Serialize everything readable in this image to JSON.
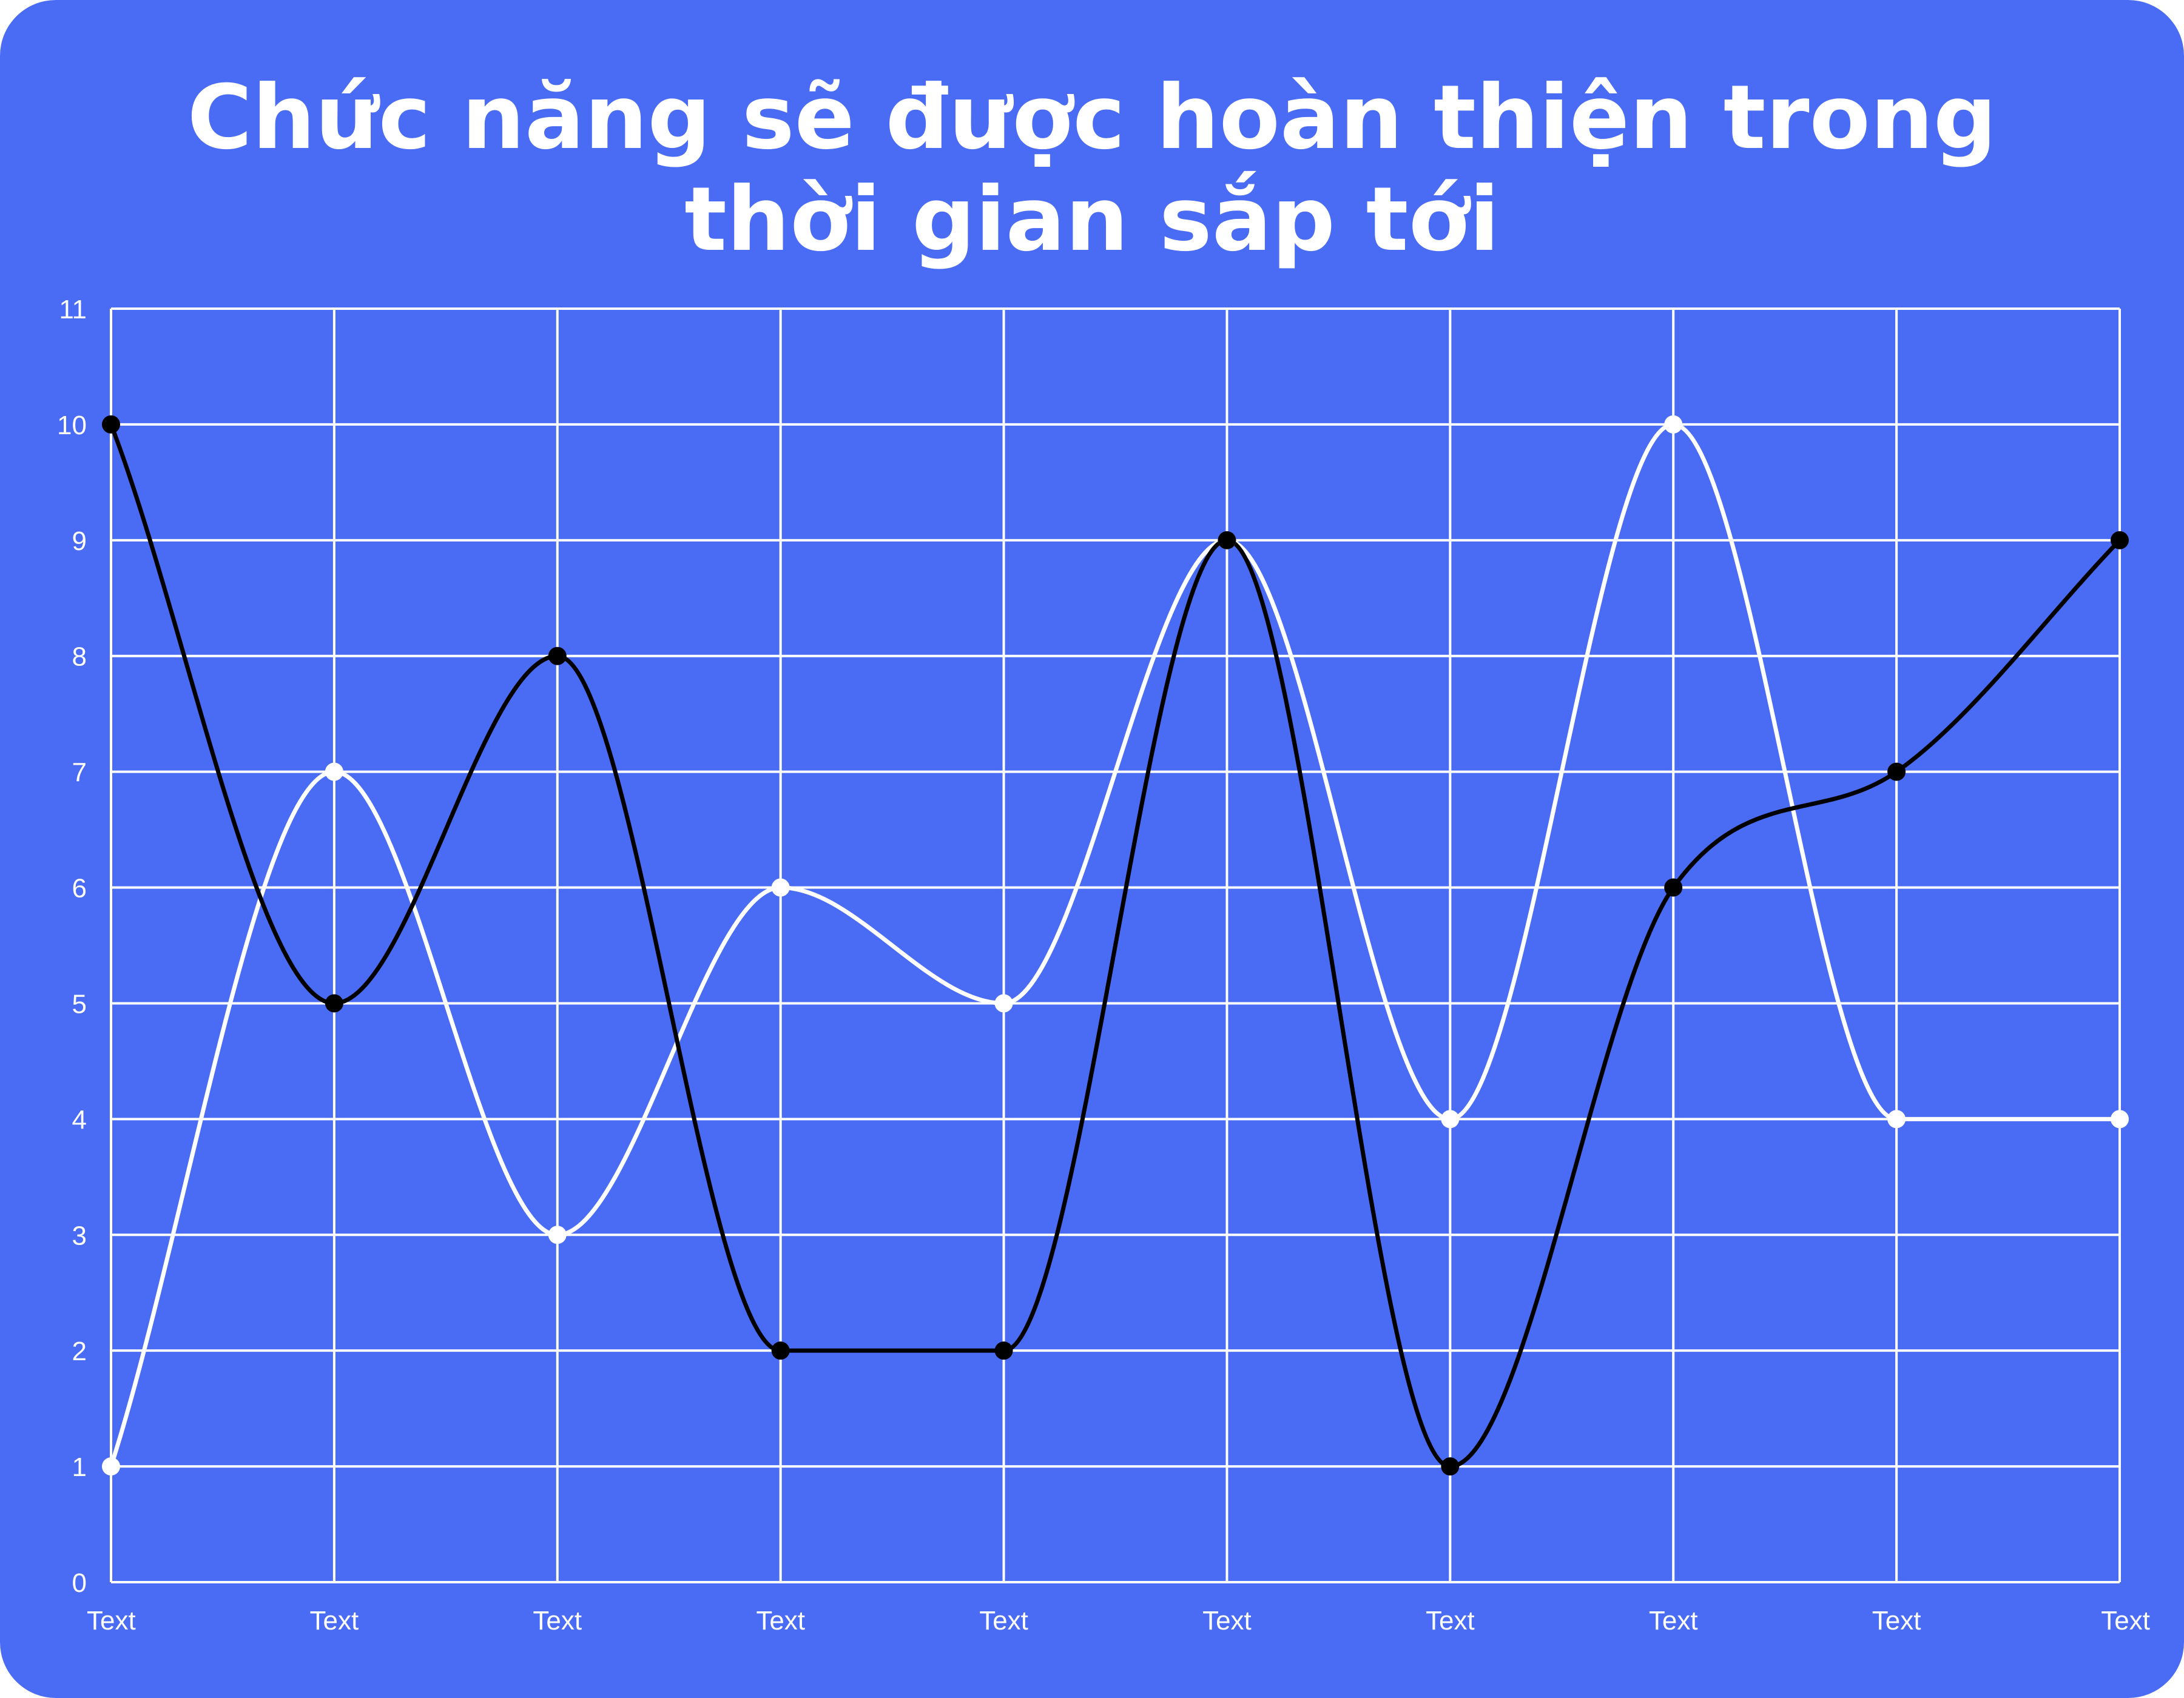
{
  "title": {
    "line1": "Chức năng sẽ được hoàn thiện trong",
    "line2": "thời gian sắp tới"
  },
  "colors": {
    "background": "#4a6cf4",
    "grid": "#ffffff",
    "series_white": "#ffffff",
    "series_black": "#000000"
  },
  "chart_data": {
    "type": "line",
    "smooth": true,
    "categories": [
      "Text",
      "Text",
      "Text",
      "Text",
      "Text",
      "Text",
      "Text",
      "Text",
      "Text",
      "Text"
    ],
    "series": [
      {
        "color": "#ffffff",
        "values": [
          1,
          7,
          3,
          6,
          5,
          9,
          4,
          10,
          4,
          4
        ]
      },
      {
        "color": "#000000",
        "values": [
          10,
          5,
          8,
          2,
          2,
          9,
          1,
          6,
          7,
          9
        ]
      }
    ],
    "yticks": [
      0,
      1,
      2,
      3,
      4,
      5,
      6,
      7,
      8,
      9,
      10,
      11
    ],
    "ylim": [
      0,
      11
    ],
    "grid": true,
    "legend": "none"
  }
}
